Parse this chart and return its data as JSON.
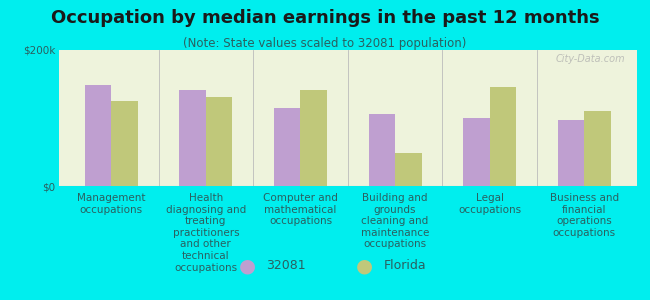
{
  "title": "Occupation by median earnings in the past 12 months",
  "subtitle": "(Note: State values scaled to 32081 population)",
  "background_color": "#00eeee",
  "plot_bg_gradient_top": "#e8f0cc",
  "plot_bg_gradient_bottom": "#f5f8e8",
  "categories": [
    "Management\noccupations",
    "Health\ndiagnosing and\ntreating\npractitioners\nand other\ntechnical\noccupations",
    "Computer and\nmathematical\noccupations",
    "Building and\ngrounds\ncleaning and\nmaintenance\noccupations",
    "Legal\noccupations",
    "Business and\nfinancial\noperations\noccupations"
  ],
  "values_32081": [
    148000,
    140000,
    115000,
    105000,
    100000,
    97000
  ],
  "values_florida": [
    125000,
    130000,
    140000,
    48000,
    145000,
    110000
  ],
  "color_32081": "#bf9fd0",
  "color_florida": "#c0c87a",
  "ylim": [
    0,
    200000
  ],
  "yticks": [
    0,
    200000
  ],
  "ytick_labels": [
    "$0",
    "$200k"
  ],
  "legend_32081": "32081",
  "legend_florida": "Florida",
  "bar_width": 0.28,
  "title_fontsize": 13,
  "subtitle_fontsize": 8.5,
  "tick_fontsize": 7.5,
  "legend_fontsize": 9,
  "text_color": "#2a6060",
  "divider_color": "#bbbbbb",
  "watermark": "City-Data.com"
}
